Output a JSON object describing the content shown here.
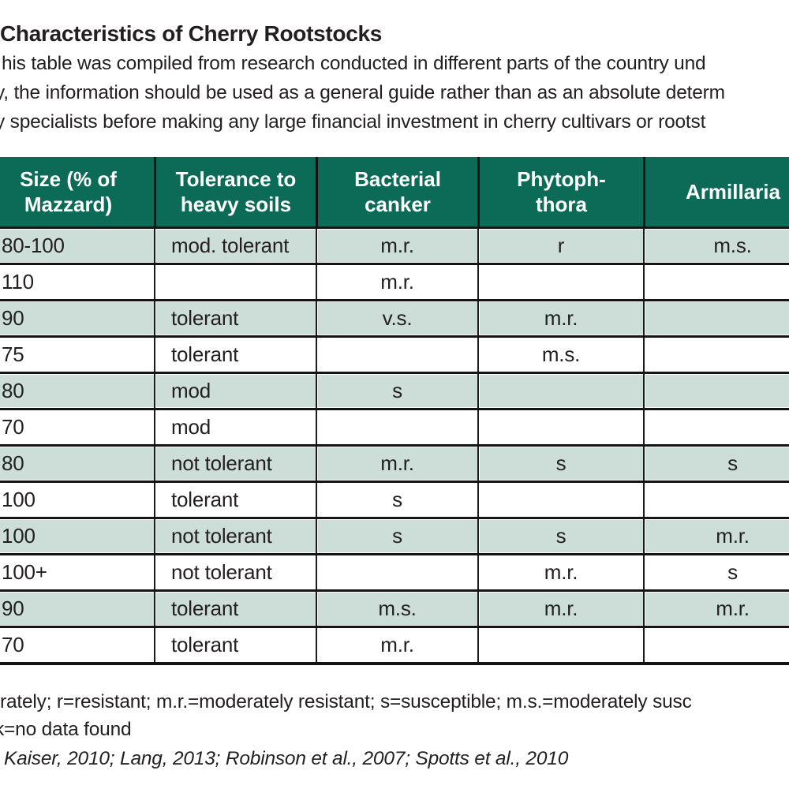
{
  "doc": {
    "title": "Characteristics of Cherry Rootstocks",
    "intro": [
      "his table was compiled from research conducted in different parts of the country und",
      "y, the information should be used as a general guide rather than as an absolute determ",
      "y specialists before making any large financial investment in cherry cultivars or rootst"
    ]
  },
  "table": {
    "header": {
      "size": "Size (% of\nMazzard)",
      "tolerance": "Tolerance to\nheavy soils",
      "bacterial": "Bacterial\ncanker",
      "phytophthora": "Phytoph-\nthora",
      "armillaria": "Armillaria"
    },
    "rows": [
      {
        "cells": [
          "80-100",
          "mod. tolerant",
          "m.r.",
          "r",
          "m.s."
        ]
      },
      {
        "cells": [
          "110",
          "",
          "m.r.",
          "",
          ""
        ]
      },
      {
        "cells": [
          "90",
          "tolerant",
          "v.s.",
          "m.r.",
          ""
        ]
      },
      {
        "cells": [
          "75",
          "tolerant",
          "",
          "m.s.",
          ""
        ]
      },
      {
        "cells": [
          "80",
          "mod",
          "s",
          "",
          ""
        ]
      },
      {
        "cells": [
          "70",
          "mod",
          "",
          "",
          ""
        ]
      },
      {
        "cells": [
          "80",
          "not tolerant",
          "m.r.",
          "s",
          "s"
        ]
      },
      {
        "cells": [
          "100",
          "tolerant",
          "s",
          "",
          ""
        ]
      },
      {
        "cells": [
          "100",
          "not tolerant",
          "s",
          "s",
          "m.r."
        ]
      },
      {
        "cells": [
          "100+",
          "not tolerant",
          "",
          "m.r.",
          "s"
        ]
      },
      {
        "cells": [
          "90",
          "tolerant",
          "m.s.",
          "m.r.",
          "m.r."
        ]
      },
      {
        "cells": [
          "70",
          "tolerant",
          "m.r.",
          "",
          ""
        ]
      }
    ]
  },
  "footnotes": {
    "key": "rately; r=resistant; m.r.=moderately resistant; s=susceptible; m.s.=moderately susc",
    "no_data": "k=no data found",
    "source": "Kaiser, 2010; Lang, 2013; Robinson et al., 2007; Spotts et al., 2010"
  },
  "colors": {
    "header_green": "#0c6b56",
    "row_teal": "#cdddd8",
    "text": "#231f20",
    "grid_line": "#141414"
  }
}
